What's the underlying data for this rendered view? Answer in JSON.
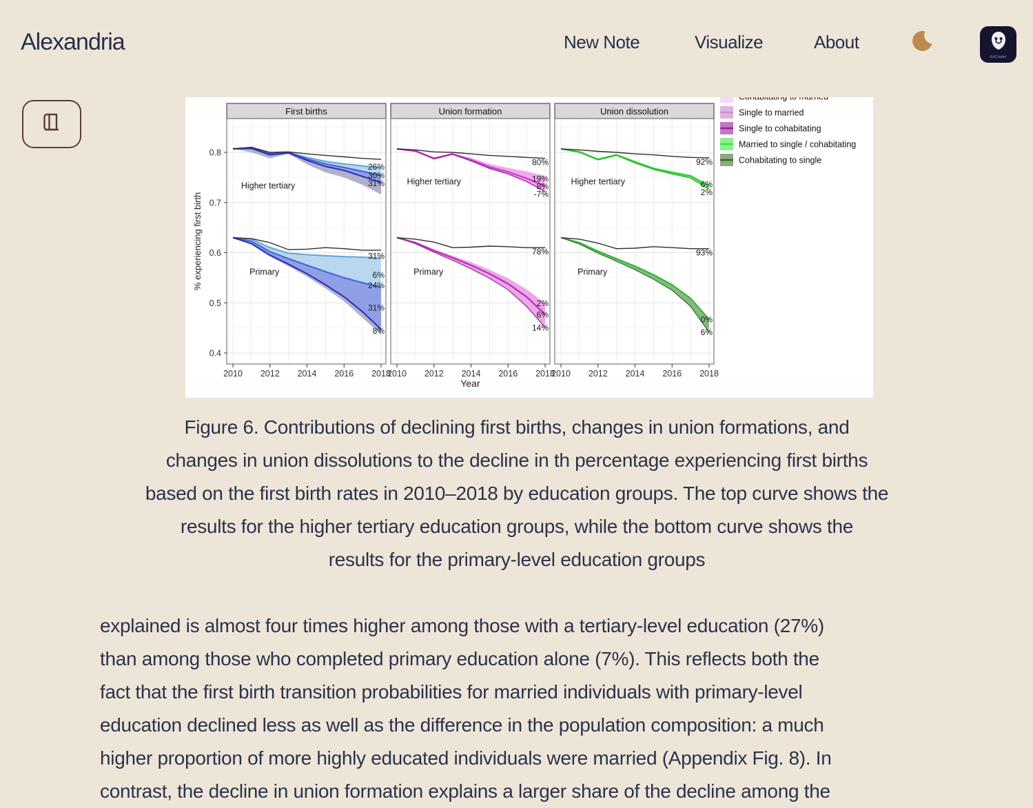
{
  "header": {
    "brand": "Alexandria",
    "nav": [
      "New Note",
      "Visualize",
      "About"
    ],
    "badge_label": "GitCitadel"
  },
  "icons": {
    "moon": "dark-mode-moon",
    "book": "library-book",
    "logo": "gitcitadel-logo"
  },
  "chart_data": {
    "type": "line",
    "xlabel": "Year",
    "ylabel": "% experiencing first birth",
    "years": [
      2010,
      2011,
      2012,
      2013,
      2014,
      2015,
      2016,
      2017,
      2018
    ],
    "xticks": [
      2010,
      2012,
      2014,
      2016,
      2018
    ],
    "yticks": [
      "0.4",
      "0.5",
      "0.6",
      "0.7",
      "0.8"
    ],
    "ylim": [
      0.378,
      0.867
    ],
    "grid": "on",
    "legend_position": "top-right",
    "legend": [
      {
        "label": "Cohabitating to married",
        "fill": "#fbd7fa",
        "line": "#f0aaee"
      },
      {
        "label": "Single to married",
        "fill": "#dfb3e0",
        "line": "#c98fcf"
      },
      {
        "label": "Single to cohabitating",
        "fill": "#c377c3",
        "line": "#8e288e"
      },
      {
        "label": "Married to single / cohabitating",
        "fill": "#8fee8f",
        "line": "#3ee63e"
      },
      {
        "label": "Cohabitating to single",
        "fill": "#8fa983",
        "line": "#2f6b2f"
      }
    ],
    "panels": [
      {
        "title": "First births",
        "groups": [
          {
            "name": "Higher tertiary",
            "label_pos": {
              "year": 2011.9,
              "v": 0.728
            },
            "black": [
              0.807,
              0.81,
              0.8,
              0.801,
              0.797,
              0.794,
              0.791,
              0.788,
              0.786
            ],
            "bands": [
              {
                "a": [
                  0.807,
                  0.808,
                  0.795,
                  0.799,
                  0.784,
                  0.772,
                  0.764,
                  0.752,
                  0.74
                ],
                "b": [
                  0.807,
                  0.8,
                  0.788,
                  0.797,
                  0.776,
                  0.76,
                  0.75,
                  0.735,
                  0.716
                ],
                "c": "#a3a3c2",
                "o": 0.85
              },
              {
                "a": [
                  0.807,
                  0.81,
                  0.799,
                  0.8,
                  0.79,
                  0.782,
                  0.777,
                  0.773,
                  0.769
                ],
                "b": [
                  0.807,
                  0.809,
                  0.797,
                  0.8,
                  0.787,
                  0.777,
                  0.77,
                  0.762,
                  0.754
                ],
                "c": "#b9d7ee",
                "o": 1
              },
              {
                "a": [
                  0.807,
                  0.809,
                  0.797,
                  0.8,
                  0.787,
                  0.777,
                  0.77,
                  0.762,
                  0.754
                ],
                "b": [
                  0.807,
                  0.808,
                  0.795,
                  0.799,
                  0.784,
                  0.772,
                  0.764,
                  0.752,
                  0.74
                ],
                "c": "#8f9fe6",
                "o": 1
              }
            ],
            "lines": [
              {
                "v": [
                  0.807,
                  0.81,
                  0.799,
                  0.8,
                  0.79,
                  0.782,
                  0.777,
                  0.773,
                  0.769
                ],
                "c": "#5ea7d8",
                "w": 2
              },
              {
                "v": [
                  0.807,
                  0.809,
                  0.797,
                  0.8,
                  0.787,
                  0.777,
                  0.77,
                  0.762,
                  0.754
                ],
                "c": "#4061d6",
                "w": 2
              },
              {
                "v": [
                  0.807,
                  0.808,
                  0.795,
                  0.799,
                  0.784,
                  0.772,
                  0.764,
                  0.752,
                  0.74
                ],
                "c": "#2c2cb8",
                "w": 2
              }
            ],
            "annotations": [
              {
                "text": "26%",
                "v": 0.771
              },
              {
                "text": "30%",
                "v": 0.754
              },
              {
                "text": "31%",
                "v": 0.738
              }
            ]
          },
          {
            "name": "Primary",
            "label_pos": {
              "year": 2011.7,
              "v": 0.556
            },
            "black": [
              0.63,
              0.628,
              0.62,
              0.606,
              0.607,
              0.61,
              0.608,
              0.605,
              0.605
            ],
            "bands": [
              {
                "a": [
                  0.63,
                  0.618,
                  0.595,
                  0.577,
                  0.558,
                  0.536,
                  0.512,
                  0.482,
                  0.447
                ],
                "b": [
                  0.63,
                  0.616,
                  0.592,
                  0.573,
                  0.552,
                  0.529,
                  0.503,
                  0.47,
                  0.437
                ],
                "c": "#a3a3c2",
                "o": 0.85
              },
              {
                "a": [
                  0.63,
                  0.627,
                  0.61,
                  0.599,
                  0.596,
                  0.594,
                  0.592,
                  0.591,
                  0.589
                ],
                "b": [
                  0.63,
                  0.623,
                  0.602,
                  0.588,
                  0.575,
                  0.562,
                  0.55,
                  0.54,
                  0.531
                ],
                "c": "#b9d7ee",
                "o": 1
              },
              {
                "a": [
                  0.63,
                  0.623,
                  0.602,
                  0.588,
                  0.575,
                  0.562,
                  0.55,
                  0.54,
                  0.531
                ],
                "b": [
                  0.63,
                  0.618,
                  0.595,
                  0.577,
                  0.558,
                  0.536,
                  0.512,
                  0.482,
                  0.447
                ],
                "c": "#8f9fe6",
                "o": 1
              }
            ],
            "lines": [
              {
                "v": [
                  0.63,
                  0.627,
                  0.61,
                  0.599,
                  0.596,
                  0.594,
                  0.592,
                  0.591,
                  0.589
                ],
                "c": "#5ea7d8",
                "w": 2
              },
              {
                "v": [
                  0.63,
                  0.623,
                  0.602,
                  0.588,
                  0.575,
                  0.562,
                  0.55,
                  0.54,
                  0.531
                ],
                "c": "#4061d6",
                "w": 2
              },
              {
                "v": [
                  0.63,
                  0.618,
                  0.595,
                  0.577,
                  0.558,
                  0.536,
                  0.512,
                  0.482,
                  0.447
                ],
                "c": "#2c2cb8",
                "w": 2
              }
            ],
            "annotations": [
              {
                "text": "31%",
                "v": 0.593
              },
              {
                "text": "6%",
                "v": 0.555
              },
              {
                "text": "24%",
                "v": 0.535
              },
              {
                "text": "31%",
                "v": 0.49
              },
              {
                "text": "8%",
                "v": 0.444
              }
            ]
          }
        ]
      },
      {
        "title": "Union formation",
        "groups": [
          {
            "name": "Higher tertiary",
            "label_pos": {
              "year": 2012.0,
              "v": 0.736
            },
            "black": [
              0.807,
              0.805,
              0.801,
              0.8,
              0.797,
              0.794,
              0.792,
              0.79,
              0.788
            ],
            "bands": [
              {
                "a": [
                  0.807,
                  0.804,
                  0.79,
                  0.798,
                  0.789,
                  0.777,
                  0.769,
                  0.762,
                  0.753
                ],
                "b": [
                  0.807,
                  0.802,
                  0.787,
                  0.796,
                  0.783,
                  0.768,
                  0.757,
                  0.742,
                  0.722
                ],
                "c": "#f1a9ee",
                "o": 1
              }
            ],
            "lines": [
              {
                "v": [
                  0.807,
                  0.803,
                  0.788,
                  0.797,
                  0.785,
                  0.771,
                  0.761,
                  0.748,
                  0.733
                ],
                "c": "#c93fc9",
                "w": 2.4
              },
              {
                "v": [
                  0.807,
                  0.802,
                  0.787,
                  0.796,
                  0.783,
                  0.768,
                  0.757,
                  0.742,
                  0.722
                ],
                "c": "#9c239c",
                "w": 1.4
              }
            ],
            "annotations": [
              {
                "text": "80%",
                "v": 0.78
              },
              {
                "text": "19%",
                "v": 0.747
              },
              {
                "text": "8%",
                "v": 0.732
              },
              {
                "text": "-7%",
                "v": 0.717
              }
            ]
          },
          {
            "name": "Primary",
            "label_pos": {
              "year": 2011.7,
              "v": 0.556
            },
            "black": [
              0.63,
              0.627,
              0.621,
              0.61,
              0.611,
              0.613,
              0.612,
              0.61,
              0.61
            ],
            "bands": [
              {
                "a": [
                  0.63,
                  0.622,
                  0.607,
                  0.594,
                  0.581,
                  0.566,
                  0.549,
                  0.527,
                  0.499
                ],
                "b": [
                  0.63,
                  0.618,
                  0.601,
                  0.585,
                  0.568,
                  0.549,
                  0.526,
                  0.493,
                  0.451
                ],
                "c": "#eda6ea",
                "o": 1
              }
            ],
            "lines": [
              {
                "v": [
                  0.63,
                  0.62,
                  0.604,
                  0.59,
                  0.575,
                  0.558,
                  0.538,
                  0.512,
                  0.477
                ],
                "c": "#b52fb5",
                "w": 2.2
              },
              {
                "v": [
                  0.63,
                  0.618,
                  0.601,
                  0.585,
                  0.568,
                  0.549,
                  0.526,
                  0.493,
                  0.451
                ],
                "c": "#8c2090",
                "w": 1.2
              }
            ],
            "annotations": [
              {
                "text": "78%",
                "v": 0.602
              },
              {
                "text": "2%",
                "v": 0.499
              },
              {
                "text": "6%",
                "v": 0.476
              },
              {
                "text": "14%",
                "v": 0.45
              }
            ]
          }
        ]
      },
      {
        "title": "Union dissolution",
        "groups": [
          {
            "name": "Higher tertiary",
            "label_pos": {
              "year": 2012.0,
              "v": 0.736
            },
            "black": [
              0.807,
              0.805,
              0.802,
              0.8,
              0.797,
              0.795,
              0.792,
              0.79,
              0.789
            ],
            "bands": [
              {
                "a": [
                  0.807,
                  0.801,
                  0.786,
                  0.795,
                  0.781,
                  0.768,
                  0.76,
                  0.753,
                  0.733
                ],
                "b": [
                  0.807,
                  0.8,
                  0.785,
                  0.794,
                  0.779,
                  0.766,
                  0.757,
                  0.749,
                  0.726
                ],
                "c": "#8fd88f",
                "o": 1
              }
            ],
            "lines": [
              {
                "v": [
                  0.807,
                  0.801,
                  0.786,
                  0.795,
                  0.781,
                  0.768,
                  0.76,
                  0.753,
                  0.733
                ],
                "c": "#2fd42f",
                "w": 2.4
              },
              {
                "v": [
                  0.807,
                  0.8,
                  0.785,
                  0.794,
                  0.779,
                  0.766,
                  0.757,
                  0.749,
                  0.726
                ],
                "c": "#28b428",
                "w": 1.4
              }
            ],
            "annotations": [
              {
                "text": "92%",
                "v": 0.781
              },
              {
                "text": "6%",
                "v": 0.736
              },
              {
                "text": "2%",
                "v": 0.72
              }
            ]
          },
          {
            "name": "Primary",
            "label_pos": {
              "year": 2011.7,
              "v": 0.556
            },
            "black": [
              0.63,
              0.627,
              0.619,
              0.608,
              0.609,
              0.612,
              0.61,
              0.608,
              0.608
            ],
            "bands": [
              {
                "a": [
                  0.63,
                  0.62,
                  0.603,
                  0.588,
                  0.573,
                  0.556,
                  0.536,
                  0.509,
                  0.467
                ],
                "b": [
                  0.63,
                  0.617,
                  0.599,
                  0.583,
                  0.566,
                  0.547,
                  0.525,
                  0.493,
                  0.441
                ],
                "c": "#86bb7e",
                "o": 1
              }
            ],
            "lines": [
              {
                "v": [
                  0.63,
                  0.62,
                  0.603,
                  0.588,
                  0.573,
                  0.556,
                  0.536,
                  0.509,
                  0.467
                ],
                "c": "#2db82d",
                "w": 2
              },
              {
                "v": [
                  0.63,
                  0.617,
                  0.599,
                  0.583,
                  0.566,
                  0.547,
                  0.525,
                  0.493,
                  0.441
                ],
                "c": "#2f6b2f",
                "w": 1.2
              }
            ],
            "annotations": [
              {
                "text": "93%",
                "v": 0.6
              },
              {
                "text": "0%",
                "v": 0.467
              },
              {
                "text": "6%",
                "v": 0.441
              }
            ]
          }
        ]
      }
    ]
  },
  "caption": {
    "lines": [
      "Figure 6. Contributions of declining first births, changes in union formations, and",
      "changes in union dissolutions to the decline in th percentage experiencing first births",
      "based on the first birth rates in 2010–2018 by education groups. The top curve shows the",
      "results for the higher tertiary education groups, while the bottom curve shows the",
      "results for the primary-level education groups"
    ]
  },
  "body": {
    "lines": [
      "explained is almost four times higher among those with a tertiary-level education (27%)",
      "than among those who completed primary education alone (7%). This reflects both the",
      "fact that the first birth transition probabilities for married individuals with primary-level",
      "education declined less as well as the difference in the population composition: a much",
      "higher proportion of more highly educated individuals were married (Appendix Fig. 8). In",
      "contrast, the decline in union formation explains a larger share of the decline among the"
    ]
  }
}
